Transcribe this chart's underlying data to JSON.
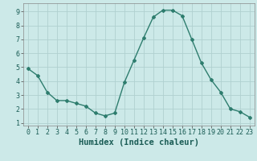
{
  "x": [
    0,
    1,
    2,
    3,
    4,
    5,
    6,
    7,
    8,
    9,
    10,
    11,
    12,
    13,
    14,
    15,
    16,
    17,
    18,
    19,
    20,
    21,
    22,
    23
  ],
  "y": [
    4.9,
    4.4,
    3.2,
    2.6,
    2.6,
    2.4,
    2.2,
    1.7,
    1.5,
    1.7,
    3.9,
    5.5,
    7.1,
    8.6,
    9.1,
    9.1,
    8.7,
    7.0,
    5.3,
    4.1,
    3.2,
    2.0,
    1.8,
    1.4
  ],
  "line_color": "#2e7d6e",
  "marker": "D",
  "marker_size": 2.0,
  "bg_color": "#cce9e8",
  "grid_color": "#b0d0d0",
  "xlabel": "Humidex (Indice chaleur)",
  "xlabel_fontsize": 7.5,
  "xlim": [
    -0.5,
    23.5
  ],
  "ylim": [
    0.8,
    9.6
  ],
  "yticks": [
    1,
    2,
    3,
    4,
    5,
    6,
    7,
    8,
    9
  ],
  "xticks": [
    0,
    1,
    2,
    3,
    4,
    5,
    6,
    7,
    8,
    9,
    10,
    11,
    12,
    13,
    14,
    15,
    16,
    17,
    18,
    19,
    20,
    21,
    22,
    23
  ],
  "tick_fontsize": 6.0,
  "linewidth": 1.0
}
